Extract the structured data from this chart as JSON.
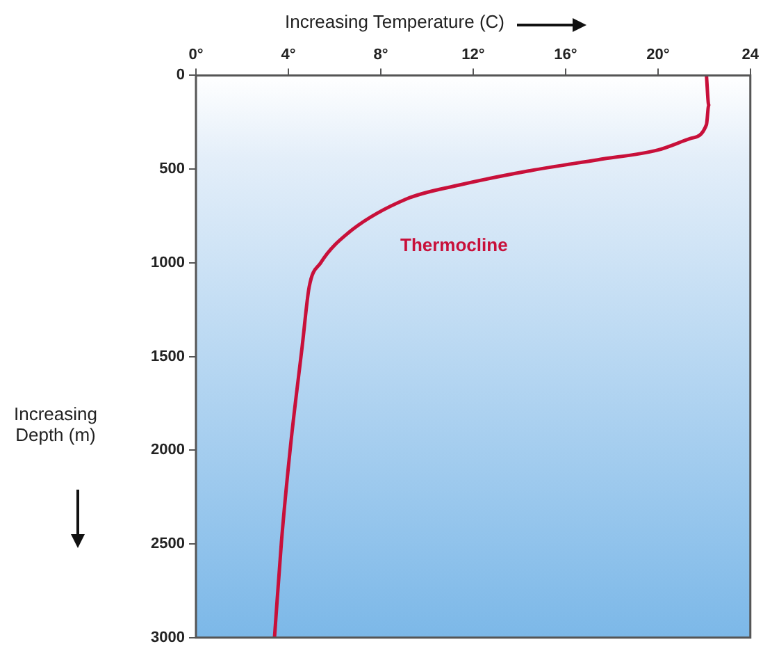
{
  "chart_data": {
    "type": "line",
    "xlabel": "Increasing Temperature (C)",
    "ylabel": "Increasing Depth (m)",
    "x": [
      22.1,
      22.2,
      22.1,
      21.4,
      20,
      17.4,
      14.4,
      11.4,
      9.1,
      6.6,
      5.4,
      4.9,
      4.6,
      4.1,
      3.7,
      3.4
    ],
    "series": [
      {
        "color": "#c8103a",
        "values": [
          0,
          158,
          263,
          337,
          398,
          450,
          510,
          585,
          660,
          840,
          1000,
          1130,
          1445,
          1970,
          2490,
          3000
        ]
      }
    ],
    "xlim": [
      0,
      24
    ],
    "xticks": [
      {
        "value": 0,
        "label": "0°"
      },
      {
        "value": 4,
        "label": "4°"
      },
      {
        "value": 8,
        "label": "8°"
      },
      {
        "value": 12,
        "label": "12°"
      },
      {
        "value": 16,
        "label": "16°"
      },
      {
        "value": 20,
        "label": "20°"
      },
      {
        "value": 24,
        "label": "24"
      }
    ],
    "ylim": [
      3000,
      0
    ],
    "yticks": [
      0,
      500,
      1000,
      1500,
      2000,
      2500,
      3000
    ],
    "annotations": [
      "Thermocline"
    ],
    "grid": false,
    "legend": false,
    "marker": "none",
    "line_style": "solid"
  }
}
